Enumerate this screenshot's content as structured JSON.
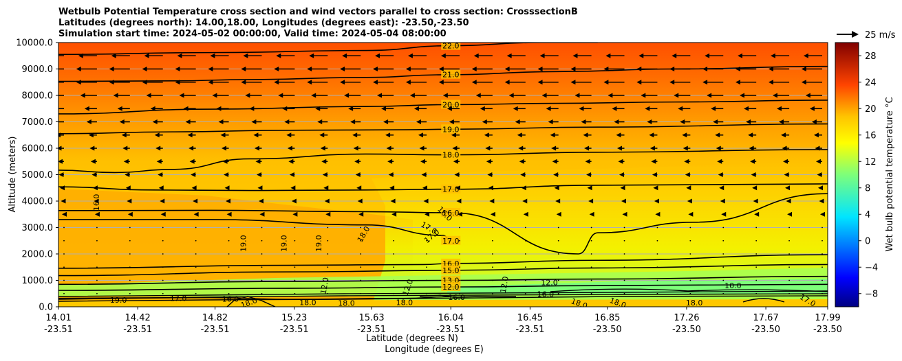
{
  "chart_data": {
    "type": "heatmap",
    "title_lines": [
      "Wetbulb Potential Temperature cross section and wind vectors parallel to cross section: CrosssectionB",
      "Latitudes (degrees north): 14.00,18.00, Longitudes (degrees east): -23.50,-23.50",
      "Simulation start time: 2024-05-02 00:00:00, Valid time: 2024-05-04 08:00:00"
    ],
    "ylabel": "Altitude (meters)",
    "xlabel_lines": [
      "Latitude (degrees N)",
      "Longitude (degrees E)"
    ],
    "ylim": [
      0,
      10000
    ],
    "yticks": [
      0,
      1000,
      2000,
      3000,
      4000,
      5000,
      6000,
      7000,
      8000,
      9000,
      10000
    ],
    "ytick_labels": [
      "0.0",
      "1000.0",
      "2000.0",
      "3000.0",
      "4000.0",
      "5000.0",
      "6000.0",
      "7000.0",
      "8000.0",
      "9000.0",
      "10000.0"
    ],
    "xlim": [
      14.01,
      17.99
    ],
    "xticks": [
      {
        "lat": "14.01",
        "lon": "-23.51"
      },
      {
        "lat": "14.42",
        "lon": "-23.51"
      },
      {
        "lat": "14.82",
        "lon": "-23.51"
      },
      {
        "lat": "15.23",
        "lon": "-23.51"
      },
      {
        "lat": "15.63",
        "lon": "-23.51"
      },
      {
        "lat": "16.04",
        "lon": "-23.51"
      },
      {
        "lat": "16.45",
        "lon": "-23.51"
      },
      {
        "lat": "16.85",
        "lon": "-23.50"
      },
      {
        "lat": "17.26",
        "lon": "-23.50"
      },
      {
        "lat": "17.67",
        "lon": "-23.50"
      },
      {
        "lat": "17.99",
        "lon": "-23.50"
      }
    ],
    "grid": true,
    "colorbar": {
      "label": "Wet bulb potential temperature $^\\circ$C",
      "label_display": "Wet bulb potential temperature °C",
      "range": [
        -10,
        30
      ],
      "ticks": [
        -8,
        -4,
        0,
        4,
        8,
        12,
        16,
        20,
        24,
        28
      ],
      "tick_labels": [
        "−8",
        "−4",
        "0",
        "4",
        "8",
        "12",
        "16",
        "20",
        "24",
        "28"
      ],
      "colormap": "jet"
    },
    "wind_key": {
      "label": "25 m/s",
      "value": 25
    },
    "contours": [
      {
        "level": 22.0,
        "label": "22.0",
        "x": [
          14.01,
          14.8,
          15.6,
          16.04,
          16.5,
          16.8
        ],
        "z": [
          9550,
          9620,
          9700,
          9880,
          10000,
          10000
        ]
      },
      {
        "level": 21.0,
        "label": "21.0",
        "x": [
          14.01,
          14.6,
          15.0,
          15.6,
          16.0,
          16.6,
          17.2,
          17.99
        ],
        "z": [
          8530,
          8550,
          8600,
          8680,
          8780,
          8900,
          9000,
          9100
        ]
      },
      {
        "level": 20.0,
        "label": "20.0",
        "x": [
          14.01,
          14.8,
          15.6,
          16.04,
          16.6,
          17.2,
          17.99
        ],
        "z": [
          7300,
          7480,
          7580,
          7650,
          7700,
          7750,
          7820
        ]
      },
      {
        "level": 19.0,
        "label": "19.0",
        "x": [
          14.01,
          14.6,
          15.2,
          15.8,
          16.04,
          16.8,
          17.99
        ],
        "z": [
          6550,
          6620,
          6680,
          6700,
          6720,
          6800,
          6920
        ]
      },
      {
        "level": 18.0,
        "label": "18.0",
        "x": [
          14.01,
          14.3,
          14.6,
          15.0,
          15.6,
          16.04,
          16.8,
          17.99
        ],
        "z": [
          5170,
          5080,
          5200,
          5600,
          5780,
          5750,
          5850,
          5950
        ]
      },
      {
        "level": 17.0,
        "label": "17.0",
        "x": [
          14.01,
          14.5,
          15.0,
          15.6,
          16.04,
          16.8,
          17.99
        ],
        "z": [
          4540,
          4420,
          4400,
          4420,
          4450,
          4600,
          4650
        ]
      },
      {
        "level": 16.0,
        "label": "16.0",
        "x": [
          14.01,
          14.8,
          15.6,
          16.04,
          16.7,
          16.8,
          17.3,
          17.99
        ],
        "z": [
          3640,
          3650,
          3600,
          3560,
          2000,
          2800,
          3200,
          4280
        ]
      },
      {
        "level": 17.0,
        "label": "17.0",
        "x": [
          14.01,
          14.8,
          15.6,
          16.0,
          16.04
        ],
        "z": [
          3300,
          3300,
          3100,
          2700,
          2500
        ]
      },
      {
        "level": 16.0,
        "label": "16.0",
        "x": [
          14.01,
          15.2,
          15.9,
          16.04,
          16.8,
          17.99
        ],
        "z": [
          1460,
          1570,
          1600,
          1640,
          1760,
          1970
        ]
      },
      {
        "level": 15.0,
        "label": "15.0",
        "x": [
          14.01,
          15.2,
          16.04,
          16.8,
          17.99
        ],
        "z": [
          1180,
          1320,
          1380,
          1470,
          1600
        ]
      },
      {
        "level": 13.0,
        "label": "13.0",
        "x": [
          14.01,
          15.2,
          16.04,
          16.8,
          17.99
        ],
        "z": [
          850,
          960,
          1000,
          1050,
          1150
        ]
      },
      {
        "level": 12.0,
        "label": "12.0",
        "x": [
          14.01,
          15.2,
          16.04,
          16.8,
          17.99
        ],
        "z": [
          620,
          700,
          750,
          800,
          850
        ]
      },
      {
        "level": 19.0,
        "label": "19.0",
        "x": [
          14.01,
          14.8,
          15.2,
          15.8,
          16.04
        ],
        "z": [
          320,
          350,
          280,
          320,
          380
        ]
      }
    ],
    "inline_labels": [
      {
        "text": "16.0",
        "x": 14.22,
        "z": 3950,
        "rot": -90
      },
      {
        "text": "19.0",
        "x": 14.98,
        "z": 2400,
        "rot": -90
      },
      {
        "text": "19.0",
        "x": 15.19,
        "z": 2400,
        "rot": -90
      },
      {
        "text": "19.0",
        "x": 15.37,
        "z": 2400,
        "rot": -90
      },
      {
        "text": "18.0",
        "x": 15.6,
        "z": 2700,
        "rot": -60
      },
      {
        "text": "17.0",
        "x": 15.92,
        "z": 2900,
        "rot": 30
      },
      {
        "text": "17.0",
        "x": 15.95,
        "z": 2600,
        "rot": -40
      },
      {
        "text": "16.0",
        "x": 16.0,
        "z": 3450,
        "rot": 45
      },
      {
        "text": "12.0",
        "x": 15.4,
        "z": 780,
        "rot": -80
      },
      {
        "text": "12.0",
        "x": 15.83,
        "z": 700,
        "rot": -70
      },
      {
        "text": "12.0",
        "x": 16.33,
        "z": 820,
        "rot": -80
      },
      {
        "text": "12.0",
        "x": 16.55,
        "z": 820,
        "rot": 0
      },
      {
        "text": "10.0",
        "x": 17.5,
        "z": 700,
        "rot": 0
      },
      {
        "text": "16.0",
        "x": 16.53,
        "z": 380,
        "rot": 0
      },
      {
        "text": "18.0",
        "x": 16.7,
        "z": 30,
        "rot": 20
      },
      {
        "text": "18.0",
        "x": 16.9,
        "z": 60,
        "rot": 20
      },
      {
        "text": "18.0",
        "x": 17.3,
        "z": 50,
        "rot": 0
      },
      {
        "text": "17.0",
        "x": 17.88,
        "z": 160,
        "rot": 30
      },
      {
        "text": "18.0",
        "x": 15.0,
        "z": 60,
        "rot": -20
      },
      {
        "text": "18.0",
        "x": 15.3,
        "z": 60,
        "rot": 0
      },
      {
        "text": "18.0",
        "x": 15.5,
        "z": 40,
        "rot": 0
      },
      {
        "text": "18.0",
        "x": 15.8,
        "z": 60,
        "rot": 0
      },
      {
        "text": "16.0",
        "x": 16.07,
        "z": 260,
        "rot": 0
      },
      {
        "text": "16.0",
        "x": 14.9,
        "z": 200,
        "rot": 0
      },
      {
        "text": "17.0",
        "x": 14.63,
        "z": 220,
        "rot": 0
      },
      {
        "text": "19.0",
        "x": 14.32,
        "z": 160,
        "rot": 0
      }
    ],
    "wind_rows": [
      {
        "z": 9500,
        "u": -18
      },
      {
        "z": 9000,
        "u": -20
      },
      {
        "z": 8500,
        "u": -20
      },
      {
        "z": 8000,
        "u": -16
      },
      {
        "z": 7500,
        "u": -12
      },
      {
        "z": 7000,
        "u": -10
      },
      {
        "z": 6500,
        "u": -8
      },
      {
        "z": 6000,
        "u": -7
      },
      {
        "z": 5500,
        "u": -6
      },
      {
        "z": 5000,
        "u": -5
      },
      {
        "z": 4500,
        "u": -4
      },
      {
        "z": 4000,
        "u": -3
      },
      {
        "z": 3500,
        "u": -2
      },
      {
        "z": 3000,
        "u": -1
      },
      {
        "z": 2500,
        "u": -1
      },
      {
        "z": 2000,
        "u": -1
      },
      {
        "z": 1500,
        "u": -1
      },
      {
        "z": 1000,
        "u": -1
      },
      {
        "z": 500,
        "u": -1
      }
    ]
  }
}
